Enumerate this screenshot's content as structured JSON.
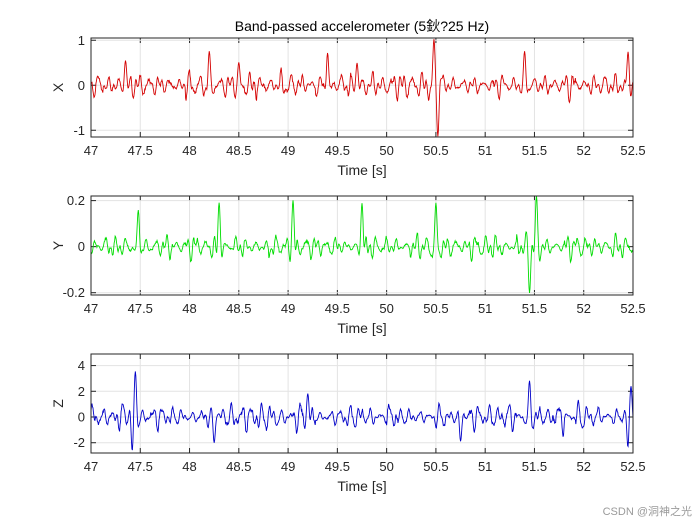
{
  "chart_data": [
    {
      "type": "line",
      "title": "Band-passed accelerometer (5鈥?25 Hz)",
      "xlabel": "Time [s]",
      "ylabel": "X",
      "xlim": [
        47,
        52.5
      ],
      "ylim": [
        -1.15,
        1.05
      ],
      "xticks": [
        "47",
        "47.5",
        "48",
        "48.5",
        "49",
        "49.5",
        "50",
        "50.5",
        "51",
        "51.5",
        "52",
        "52.5"
      ],
      "yticks": [
        "-1",
        "0",
        "1"
      ],
      "grid": true,
      "series": [
        {
          "name": "X",
          "color": "#d40000",
          "typical_amplitude": 0.32,
          "bursts": [
            {
              "t": 47.35,
              "amp": 0.55
            },
            {
              "t": 48.2,
              "amp": 0.75
            },
            {
              "t": 48.5,
              "amp": 0.5
            },
            {
              "t": 49.4,
              "amp": 0.75
            },
            {
              "t": 49.7,
              "amp": 0.5
            },
            {
              "t": 50.48,
              "amp": 1.0
            },
            {
              "t": 50.52,
              "amp": -1.12
            },
            {
              "t": 51.4,
              "amp": 0.75
            },
            {
              "t": 52.45,
              "amp": 0.75
            }
          ]
        }
      ]
    },
    {
      "type": "line",
      "title": "",
      "xlabel": "Time [s]",
      "ylabel": "Y",
      "xlim": [
        47,
        52.5
      ],
      "ylim": [
        -0.21,
        0.22
      ],
      "xticks": [
        "47",
        "47.5",
        "48",
        "48.5",
        "49",
        "49.5",
        "50",
        "50.5",
        "51",
        "51.5",
        "52",
        "52.5"
      ],
      "yticks": [
        "-0.2",
        "0",
        "0.2"
      ],
      "grid": true,
      "series": [
        {
          "name": "Y",
          "color": "#00dc00",
          "typical_amplitude": 0.05,
          "bursts": [
            {
              "t": 47.48,
              "amp": 0.16
            },
            {
              "t": 48.3,
              "amp": 0.19
            },
            {
              "t": 49.05,
              "amp": 0.2
            },
            {
              "t": 49.75,
              "amp": 0.19
            },
            {
              "t": 50.5,
              "amp": 0.19
            },
            {
              "t": 51.45,
              "amp": -0.2
            },
            {
              "t": 51.52,
              "amp": 0.22
            }
          ]
        }
      ]
    },
    {
      "type": "line",
      "title": "",
      "xlabel": "Time [s]",
      "ylabel": "Z",
      "xlim": [
        47,
        52.5
      ],
      "ylim": [
        -2.8,
        4.9
      ],
      "xticks": [
        "47",
        "47.5",
        "48",
        "48.5",
        "49",
        "49.5",
        "50",
        "50.5",
        "51",
        "51.5",
        "52",
        "52.5"
      ],
      "yticks": [
        "-2",
        "0",
        "2",
        "4"
      ],
      "grid": true,
      "series": [
        {
          "name": "Z",
          "color": "#0000c8",
          "typical_amplitude": 1.0,
          "bursts": [
            {
              "t": 47.42,
              "amp": -2.6
            },
            {
              "t": 47.45,
              "amp": 3.5
            },
            {
              "t": 48.25,
              "amp": -2.0
            },
            {
              "t": 49.2,
              "amp": 1.8
            },
            {
              "t": 50.75,
              "amp": -1.9
            },
            {
              "t": 51.45,
              "amp": 2.8
            },
            {
              "t": 52.45,
              "amp": -2.5
            },
            {
              "t": 52.48,
              "amp": 2.4
            }
          ]
        }
      ]
    }
  ],
  "watermark": "CSDN @洞神之光"
}
